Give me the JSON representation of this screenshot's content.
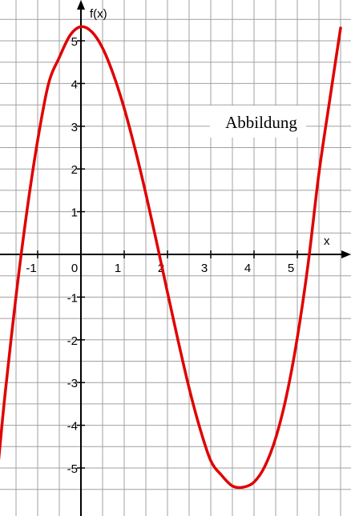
{
  "chart_data": {
    "type": "line",
    "xlabel": "x",
    "ylabel": "f(x)",
    "xlim": [
      -1.9,
      6.0
    ],
    "ylim": [
      -5.9,
      5.9
    ],
    "grid": true,
    "grid_step": 0.5,
    "x_ticks": [
      "-1",
      "0",
      "1",
      "2",
      "3",
      "4",
      "5"
    ],
    "y_ticks": [
      "5",
      "4",
      "3",
      "2",
      "1",
      "-1",
      "-2",
      "-3",
      "-4",
      "-5"
    ],
    "annotation": "Abbildung",
    "series": [
      {
        "color": "#e00000",
        "x": [
          -1.9,
          -1.75,
          -1.5,
          -1.25,
          -1.0,
          -0.75,
          -0.5,
          -0.25,
          0.0,
          0.25,
          0.5,
          0.75,
          1.0,
          1.25,
          1.5,
          1.75,
          2.0,
          2.25,
          2.5,
          2.75,
          3.0,
          3.25,
          3.5,
          3.75,
          4.0,
          4.25,
          4.5,
          4.75,
          5.0,
          5.25,
          5.5,
          5.75,
          6.0
        ],
        "y": [
          -4.8,
          -3.24,
          -0.98,
          1.0,
          2.67,
          3.99,
          4.61,
          5.13,
          5.33,
          5.21,
          4.83,
          4.21,
          3.42,
          2.47,
          1.42,
          0.28,
          -0.89,
          -2.04,
          -3.13,
          -4.07,
          -4.83,
          -5.17,
          -5.42,
          -5.45,
          -5.33,
          -4.96,
          -4.3,
          -3.31,
          -1.95,
          -0.22,
          1.9,
          3.62,
          5.3
        ]
      }
    ]
  }
}
